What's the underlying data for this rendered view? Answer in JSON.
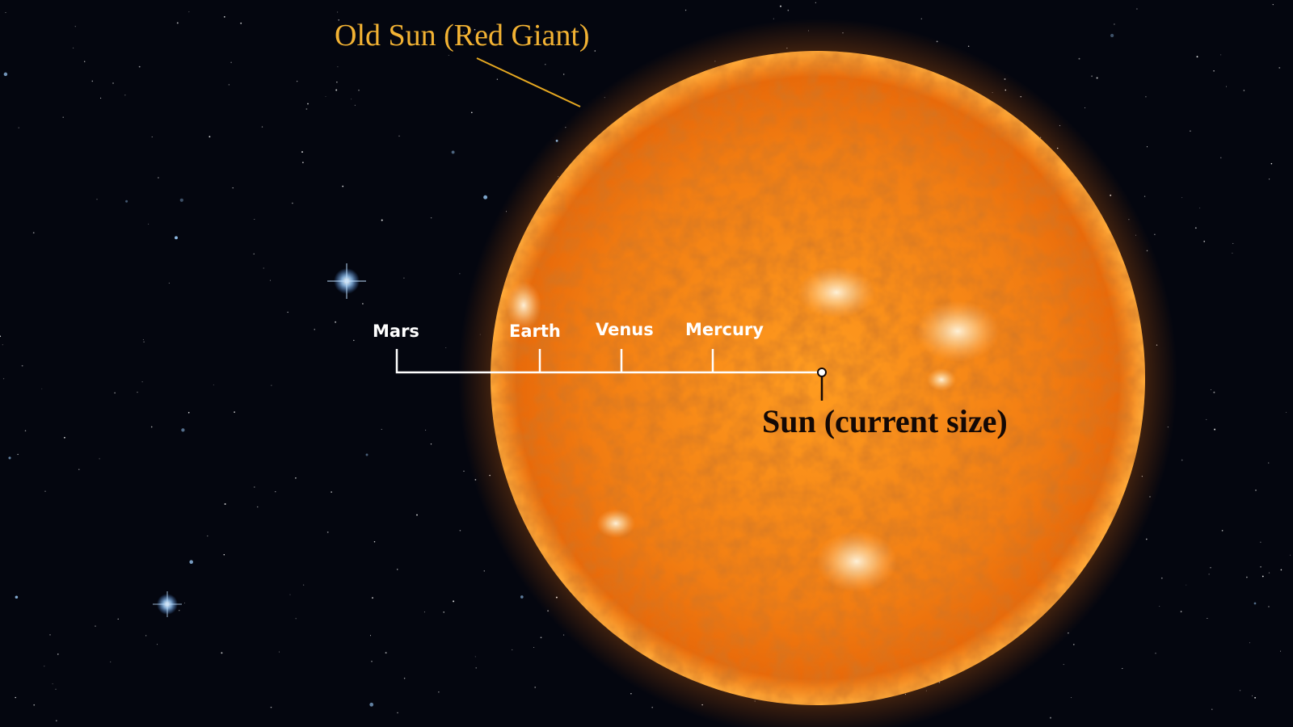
{
  "title": "Old Sun (Red Giant)",
  "current_sun_label": "Sun (current size)",
  "planets": [
    {
      "name": "Mars"
    },
    {
      "name": "Earth"
    },
    {
      "name": "Venus"
    },
    {
      "name": "Mercury"
    }
  ],
  "colors": {
    "space": "#04060f",
    "sun_core": "#ff9a1a",
    "sun_mid": "#f07a10",
    "sun_edge": "#d85a06",
    "title_text": "#f2b233",
    "leader_line": "#e6a821",
    "scale_line": "#ffffff",
    "current_sun_text": "#130805"
  }
}
